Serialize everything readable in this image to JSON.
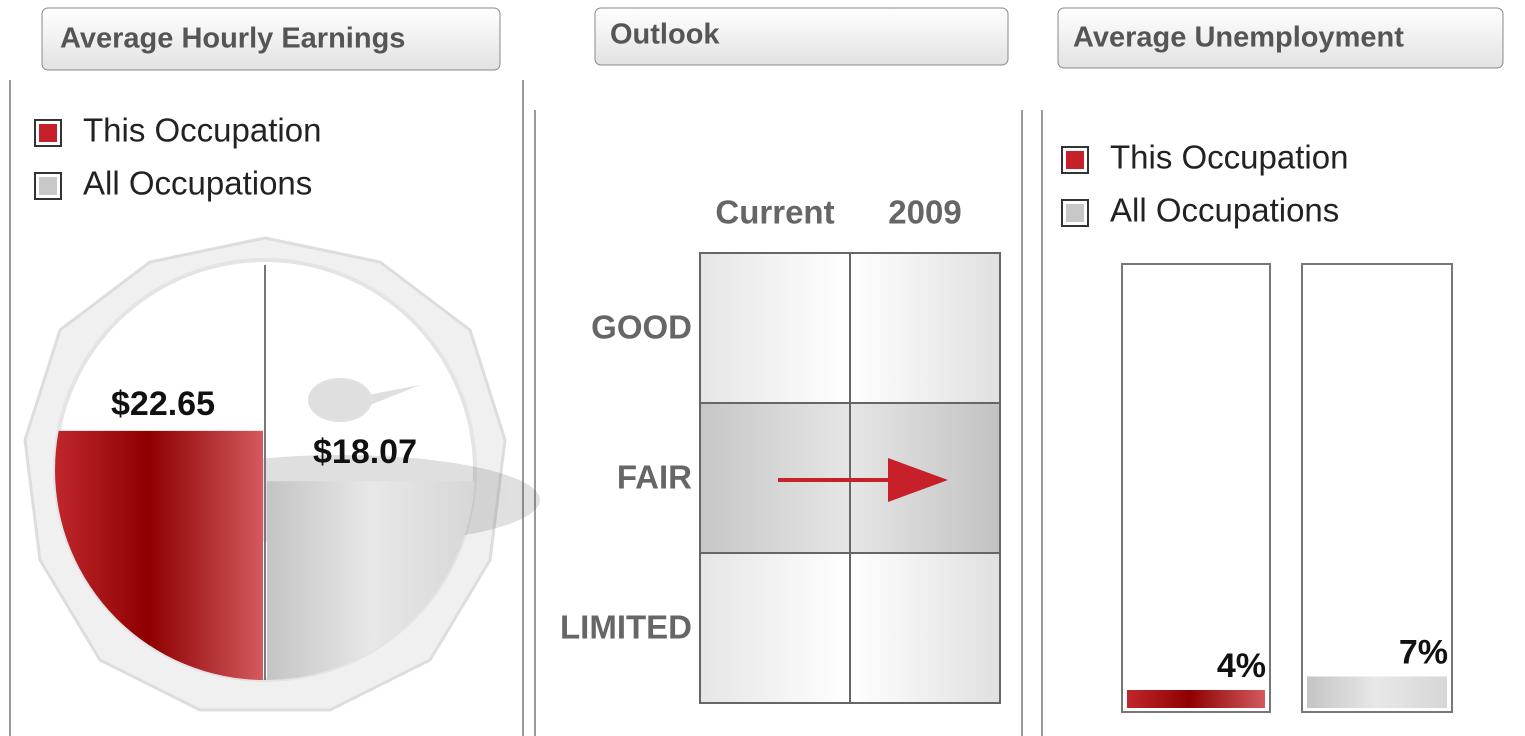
{
  "earnings": {
    "tab": "Average Hourly Earnings",
    "legend": [
      "This Occupation",
      "All Occupations"
    ],
    "values": [
      22.65,
      18.07
    ],
    "value_labels": [
      "$22.65",
      "$18.07"
    ]
  },
  "outlook": {
    "tab": "Outlook",
    "columns": [
      "Current",
      "2009"
    ],
    "rows": [
      "GOOD",
      "FAIR",
      "LIMITED"
    ]
  },
  "unemployment": {
    "tab": "Average Unemployment",
    "legend": [
      "This Occupation",
      "All Occupations"
    ],
    "values": [
      4,
      7
    ],
    "value_labels": [
      "4%",
      "7%"
    ]
  }
}
